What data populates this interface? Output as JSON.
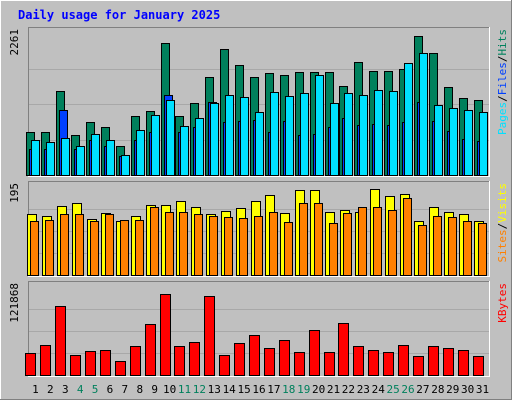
{
  "colors": {
    "background": "#c0c0c0",
    "plot_area": "#c0c0c0",
    "grid": "#a8a8a8",
    "hits": "#00805c",
    "files": "#0040ff",
    "pages": "#00e0ff",
    "visits": "#ffff00",
    "sites": "#ff8000",
    "kbytes": "#ff0000",
    "title": "#0000ff",
    "weekend_day_label": "#00805c"
  },
  "chart_data": {
    "type": "bar",
    "title": "Daily usage for January 2025",
    "categories": [
      "1",
      "2",
      "3",
      "4",
      "5",
      "6",
      "7",
      "8",
      "9",
      "10",
      "11",
      "12",
      "13",
      "14",
      "15",
      "16",
      "17",
      "18",
      "19",
      "20",
      "21",
      "22",
      "23",
      "24",
      "25",
      "26",
      "27",
      "28",
      "29",
      "30",
      "31"
    ],
    "weekend_days": [
      "4",
      "5",
      "11",
      "12",
      "18",
      "19",
      "25",
      "26"
    ],
    "panels": [
      {
        "id": "hits-files-pages",
        "axis_max_label": "2261",
        "ylim": [
          0,
          2261
        ],
        "legend": [
          "Pages",
          "/",
          "Files",
          "/",
          "Hits"
        ],
        "series": [
          {
            "name": "Hits",
            "values": [
              690,
              690,
              1330,
              640,
              840,
              760,
              460,
              940,
              1020,
              2100,
              940,
              1150,
              1560,
              2000,
              1750,
              1560,
              1630,
              1600,
              1640,
              1640,
              1640,
              1420,
              1800,
              1650,
              1650,
              1680,
              2210,
              1940,
              1400,
              1230,
              1200
            ]
          },
          {
            "name": "Files",
            "values": [
              420,
              420,
              1030,
              420,
              560,
              460,
              310,
              560,
              680,
              1270,
              690,
              760,
              1170,
              840,
              860,
              870,
              690,
              860,
              640,
              660,
              760,
              910,
              790,
              810,
              800,
              840,
              1160,
              860,
              700,
              570,
              540
            ]
          },
          {
            "name": "Pages",
            "values": [
              560,
              520,
              590,
              460,
              660,
              560,
              320,
              710,
              960,
              1200,
              780,
              910,
              1140,
              1270,
              1240,
              1010,
              1320,
              1250,
              1300,
              1600,
              1140,
              1310,
              1270,
              1350,
              1340,
              1790,
              1950,
              1120,
              1070,
              1030,
              1000
            ]
          }
        ]
      },
      {
        "id": "visits-sites",
        "axis_max_label": "195",
        "ylim": [
          0,
          195
        ],
        "legend": [
          "Sites",
          "/",
          "Visits"
        ],
        "series": [
          {
            "name": "Visits",
            "values": [
              135,
              130,
              152,
              160,
              125,
              138,
              120,
              130,
              155,
              155,
              165,
              150,
              135,
              142,
              148,
              165,
              178,
              138,
              188,
              188,
              140,
              145,
              140,
              190,
              175,
              180,
              120,
              150,
              140,
              135,
              120
            ]
          },
          {
            "name": "Sites",
            "values": [
              120,
              122,
              135,
              136,
              120,
              135,
              122,
              122,
              150,
              140,
              140,
              135,
              130,
              128,
              126,
              130,
              140,
              118,
              160,
              160,
              115,
              138,
              150,
              150,
              145,
              170,
              110,
              130,
              128,
              120,
              115
            ]
          }
        ]
      },
      {
        "id": "kbytes",
        "axis_max_label": "121868",
        "ylim": [
          0,
          121868
        ],
        "legend": [
          "KBytes"
        ],
        "series": [
          {
            "name": "KBytes",
            "values": [
              30000,
              42000,
              95000,
              28000,
              33000,
              35000,
              20000,
              40000,
              70000,
              112000,
              40000,
              46000,
              110000,
              28000,
              44000,
              55000,
              38000,
              48000,
              32000,
              62000,
              32000,
              72000,
              40000,
              34000,
              32000,
              42000,
              27000,
              40000,
              37000,
              35000,
              27000
            ]
          }
        ]
      }
    ]
  }
}
